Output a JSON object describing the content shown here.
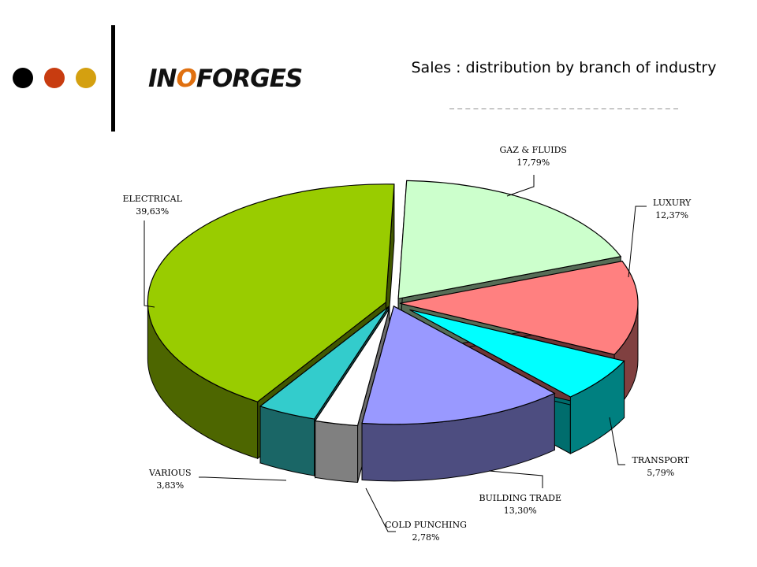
{
  "header": {
    "dots": [
      "#000000",
      "#c83c10",
      "#d4a010"
    ],
    "logo": {
      "part1": "IN",
      "part2": "O",
      "part3": "FORGES"
    },
    "title": "Sales : distribution by branch of industry"
  },
  "chart_data": {
    "type": "pie",
    "title": "Sales : distribution by branch of industry",
    "exploded": true,
    "three_d": true,
    "series": [
      {
        "name": "GAZ & FLUIDS",
        "value": 17.79,
        "label": "17,79%",
        "color": "#ccffcc"
      },
      {
        "name": "LUXURY",
        "value": 12.37,
        "label": "12,37%",
        "color": "#ff8080"
      },
      {
        "name": "TRANSPORT",
        "value": 5.79,
        "label": "5,79%",
        "color": "#00ffff"
      },
      {
        "name": "BUILDING TRADE",
        "value": 13.3,
        "label": "13,30%",
        "color": "#9999ff"
      },
      {
        "name": "COLD PUNCHING",
        "value": 2.78,
        "label": "2,78%",
        "color": "#ffffff"
      },
      {
        "name": "VARIOUS",
        "value": 3.83,
        "label": "3,83%",
        "color": "#33cccc"
      },
      {
        "name": "ELECTRICAL",
        "value": 39.63,
        "label": "39,63%",
        "color": "#99cc00"
      }
    ]
  }
}
